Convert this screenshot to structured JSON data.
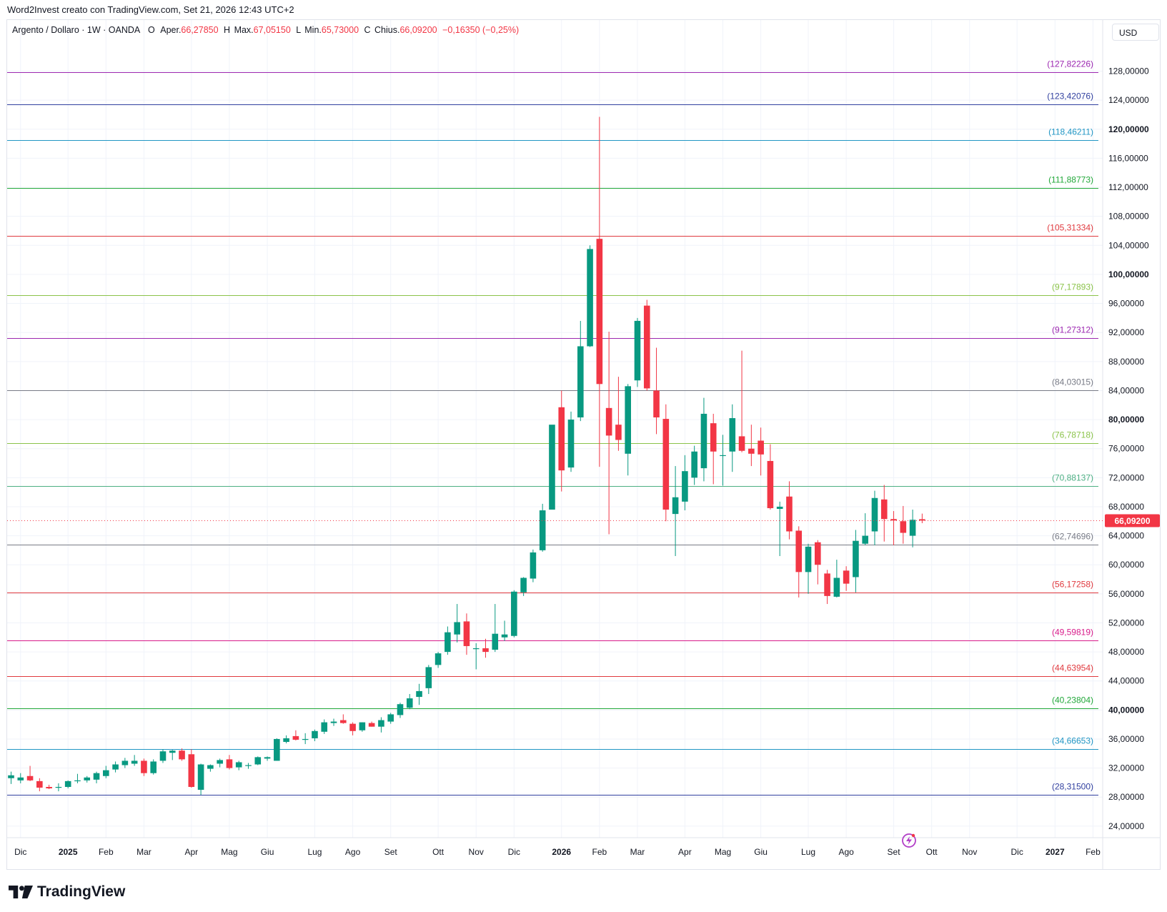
{
  "header": {
    "caption": "Word2Invest creato con TradingView.com, Set 21, 2026 12:43 UTC+2"
  },
  "symbol": {
    "title": "Argento / Dollaro · 1W · OANDA",
    "open_label": "O",
    "open_prefix": "Aper.",
    "open_value": "66,27850",
    "high_label": "H",
    "high_prefix": "Max.",
    "high_value": "67,05150",
    "low_label": "L",
    "low_prefix": "Min.",
    "low_value": "65,73000",
    "close_label": "C",
    "close_prefix": "Chius.",
    "close_value": "66,09200",
    "change": "−0,16350 (−0,25%)"
  },
  "currency_button": "USD",
  "footer": {
    "brand": "TradingView"
  },
  "icons": {
    "logo": "tradingview-logo-icon",
    "alert": "lightning-alert-icon"
  },
  "colors": {
    "up": "#089981",
    "down": "#f23645",
    "grid": "#f0f3fa",
    "axis_text": "#131722",
    "last_price_bg": "#f23645"
  },
  "chart_data": {
    "type": "candlestick",
    "title": "Argento / Dollaro · 1W · OANDA",
    "ylim": [
      23.0,
      131.5
    ],
    "y_ticks": [
      {
        "v": 24,
        "label": "24,00000",
        "bold": false
      },
      {
        "v": 28,
        "label": "28,00000",
        "bold": false
      },
      {
        "v": 32,
        "label": "32,00000",
        "bold": false
      },
      {
        "v": 36,
        "label": "36,00000",
        "bold": false
      },
      {
        "v": 40,
        "label": "40,00000",
        "bold": true
      },
      {
        "v": 44,
        "label": "44,00000",
        "bold": false
      },
      {
        "v": 48,
        "label": "48,00000",
        "bold": false
      },
      {
        "v": 52,
        "label": "52,00000",
        "bold": false
      },
      {
        "v": 56,
        "label": "56,00000",
        "bold": false
      },
      {
        "v": 60,
        "label": "60,00000",
        "bold": false
      },
      {
        "v": 64,
        "label": "64,00000",
        "bold": false
      },
      {
        "v": 68,
        "label": "68,00000",
        "bold": false
      },
      {
        "v": 72,
        "label": "72,00000",
        "bold": false
      },
      {
        "v": 76,
        "label": "76,00000",
        "bold": false
      },
      {
        "v": 80,
        "label": "80,00000",
        "bold": true
      },
      {
        "v": 84,
        "label": "84,00000",
        "bold": false
      },
      {
        "v": 88,
        "label": "88,00000",
        "bold": false
      },
      {
        "v": 92,
        "label": "92,00000",
        "bold": false
      },
      {
        "v": 96,
        "label": "96,00000",
        "bold": false
      },
      {
        "v": 100,
        "label": "100,00000",
        "bold": true
      },
      {
        "v": 104,
        "label": "104,00000",
        "bold": false
      },
      {
        "v": 108,
        "label": "108,00000",
        "bold": false
      },
      {
        "v": 112,
        "label": "112,00000",
        "bold": false
      },
      {
        "v": 116,
        "label": "116,00000",
        "bold": false
      },
      {
        "v": 120,
        "label": "120,00000",
        "bold": true
      },
      {
        "v": 124,
        "label": "124,00000",
        "bold": false
      },
      {
        "v": 128,
        "label": "128,00000",
        "bold": false
      }
    ],
    "x_ticks": [
      {
        "i": 1,
        "label": "Dic",
        "bold": false
      },
      {
        "i": 6,
        "label": "2025",
        "bold": true
      },
      {
        "i": 10,
        "label": "Feb",
        "bold": false
      },
      {
        "i": 14,
        "label": "Mar",
        "bold": false
      },
      {
        "i": 19,
        "label": "Apr",
        "bold": false
      },
      {
        "i": 23,
        "label": "Mag",
        "bold": false
      },
      {
        "i": 27,
        "label": "Giu",
        "bold": false
      },
      {
        "i": 32,
        "label": "Lug",
        "bold": false
      },
      {
        "i": 36,
        "label": "Ago",
        "bold": false
      },
      {
        "i": 40,
        "label": "Set",
        "bold": false
      },
      {
        "i": 45,
        "label": "Ott",
        "bold": false
      },
      {
        "i": 49,
        "label": "Nov",
        "bold": false
      },
      {
        "i": 53,
        "label": "Dic",
        "bold": false
      },
      {
        "i": 58,
        "label": "2026",
        "bold": true
      },
      {
        "i": 62,
        "label": "Feb",
        "bold": false
      },
      {
        "i": 66,
        "label": "Mar",
        "bold": false
      },
      {
        "i": 71,
        "label": "Apr",
        "bold": false
      },
      {
        "i": 75,
        "label": "Mag",
        "bold": false
      },
      {
        "i": 79,
        "label": "Giu",
        "bold": false
      },
      {
        "i": 84,
        "label": "Lug",
        "bold": false
      },
      {
        "i": 88,
        "label": "Ago",
        "bold": false
      },
      {
        "i": 93,
        "label": "Set",
        "bold": false
      },
      {
        "i": 97,
        "label": "Ott",
        "bold": false
      },
      {
        "i": 101,
        "label": "Nov",
        "bold": false
      },
      {
        "i": 106,
        "label": "Dic",
        "bold": false
      },
      {
        "i": 110,
        "label": "2027",
        "bold": true
      },
      {
        "i": 114,
        "label": "Feb",
        "bold": false
      }
    ],
    "levels": [
      {
        "value": 127.82226,
        "label": "(127,82226)",
        "color": "#9c27b0"
      },
      {
        "value": 123.42076,
        "label": "(123,42076)",
        "color": "#303f9f"
      },
      {
        "value": 118.46211,
        "label": "(118,46211)",
        "color": "#2196c4"
      },
      {
        "value": 111.88773,
        "label": "(111,88773)",
        "color": "#22a83a"
      },
      {
        "value": 105.31334,
        "label": "(105,31334)",
        "color": "#e0393e"
      },
      {
        "value": 97.17893,
        "label": "(97,17893)",
        "color": "#8bc34a"
      },
      {
        "value": 91.27312,
        "label": "(91,27312)",
        "color": "#9c27b0"
      },
      {
        "value": 84.03015,
        "label": "(84,03015)",
        "color": "#787b86"
      },
      {
        "value": 76.78718,
        "label": "(76,78718)",
        "color": "#8bc34a"
      },
      {
        "value": 70.88137,
        "label": "(70,88137)",
        "color": "#4caf83"
      },
      {
        "value": 62.74696,
        "label": "(62,74696)",
        "color": "#787b86"
      },
      {
        "value": 56.17258,
        "label": "(56,17258)",
        "color": "#e0393e"
      },
      {
        "value": 49.59819,
        "label": "(49,59819)",
        "color": "#d81b8a"
      },
      {
        "value": 44.63954,
        "label": "(44,63954)",
        "color": "#e0393e"
      },
      {
        "value": 40.23804,
        "label": "(40,23804)",
        "color": "#22a83a"
      },
      {
        "value": 34.66653,
        "label": "(34,66653)",
        "color": "#2196c4"
      },
      {
        "value": 28.315,
        "label": "(28,31500)",
        "color": "#303f9f"
      }
    ],
    "last_price": {
      "value": 66.092,
      "label": "66,09200"
    },
    "candles": [
      {
        "o": 30.6,
        "h": 31.5,
        "l": 29.8,
        "c": 31.0
      },
      {
        "o": 30.3,
        "h": 31.3,
        "l": 29.9,
        "c": 30.7
      },
      {
        "o": 30.9,
        "h": 32.3,
        "l": 30.2,
        "c": 30.3
      },
      {
        "o": 30.2,
        "h": 30.6,
        "l": 28.8,
        "c": 29.3
      },
      {
        "o": 29.4,
        "h": 29.7,
        "l": 29.1,
        "c": 29.2
      },
      {
        "o": 29.3,
        "h": 29.9,
        "l": 28.8,
        "c": 29.4
      },
      {
        "o": 29.4,
        "h": 30.3,
        "l": 29.2,
        "c": 30.2
      },
      {
        "o": 30.2,
        "h": 31.2,
        "l": 29.9,
        "c": 30.3
      },
      {
        "o": 30.3,
        "h": 30.9,
        "l": 30.0,
        "c": 30.7
      },
      {
        "o": 30.4,
        "h": 31.5,
        "l": 29.9,
        "c": 31.3
      },
      {
        "o": 30.9,
        "h": 32.3,
        "l": 30.6,
        "c": 31.7
      },
      {
        "o": 31.8,
        "h": 32.9,
        "l": 31.4,
        "c": 32.5
      },
      {
        "o": 32.4,
        "h": 33.4,
        "l": 32.0,
        "c": 33.0
      },
      {
        "o": 32.6,
        "h": 33.8,
        "l": 32.3,
        "c": 33.0
      },
      {
        "o": 33.0,
        "h": 33.3,
        "l": 30.9,
        "c": 31.3
      },
      {
        "o": 31.3,
        "h": 33.2,
        "l": 31.1,
        "c": 32.9
      },
      {
        "o": 33.0,
        "h": 34.6,
        "l": 32.7,
        "c": 34.3
      },
      {
        "o": 34.1,
        "h": 34.5,
        "l": 33.1,
        "c": 34.4
      },
      {
        "o": 34.4,
        "h": 34.7,
        "l": 33.0,
        "c": 33.2
      },
      {
        "o": 33.9,
        "h": 34.6,
        "l": 29.3,
        "c": 29.4
      },
      {
        "o": 29.0,
        "h": 32.6,
        "l": 28.3,
        "c": 32.5
      },
      {
        "o": 31.9,
        "h": 32.5,
        "l": 31.5,
        "c": 32.4
      },
      {
        "o": 32.6,
        "h": 33.3,
        "l": 32.1,
        "c": 33.1
      },
      {
        "o": 33.2,
        "h": 33.8,
        "l": 31.8,
        "c": 32.0
      },
      {
        "o": 32.1,
        "h": 33.0,
        "l": 31.7,
        "c": 32.8
      },
      {
        "o": 32.3,
        "h": 32.7,
        "l": 31.9,
        "c": 32.4
      },
      {
        "o": 32.5,
        "h": 33.6,
        "l": 32.4,
        "c": 33.5
      },
      {
        "o": 33.3,
        "h": 33.6,
        "l": 33.0,
        "c": 33.5
      },
      {
        "o": 33.0,
        "h": 36.1,
        "l": 33.0,
        "c": 36.0
      },
      {
        "o": 35.6,
        "h": 36.5,
        "l": 35.4,
        "c": 36.1
      },
      {
        "o": 36.4,
        "h": 37.2,
        "l": 35.8,
        "c": 35.9
      },
      {
        "o": 35.9,
        "h": 36.8,
        "l": 35.3,
        "c": 36.0
      },
      {
        "o": 36.1,
        "h": 37.3,
        "l": 35.7,
        "c": 37.1
      },
      {
        "o": 37.0,
        "h": 38.7,
        "l": 36.7,
        "c": 38.3
      },
      {
        "o": 38.2,
        "h": 38.8,
        "l": 37.8,
        "c": 38.4
      },
      {
        "o": 38.6,
        "h": 39.4,
        "l": 38.1,
        "c": 38.2
      },
      {
        "o": 38.1,
        "h": 38.3,
        "l": 36.5,
        "c": 37.1
      },
      {
        "o": 37.2,
        "h": 38.3,
        "l": 37.0,
        "c": 38.3
      },
      {
        "o": 38.2,
        "h": 38.4,
        "l": 37.7,
        "c": 37.7
      },
      {
        "o": 37.7,
        "h": 39.0,
        "l": 36.9,
        "c": 38.6
      },
      {
        "o": 38.4,
        "h": 39.6,
        "l": 38.1,
        "c": 39.4
      },
      {
        "o": 39.3,
        "h": 41.0,
        "l": 38.9,
        "c": 40.8
      },
      {
        "o": 40.3,
        "h": 42.2,
        "l": 40.1,
        "c": 41.6
      },
      {
        "o": 41.8,
        "h": 43.6,
        "l": 40.7,
        "c": 42.6
      },
      {
        "o": 43.0,
        "h": 46.2,
        "l": 42.2,
        "c": 45.9
      },
      {
        "o": 46.2,
        "h": 48.0,
        "l": 45.8,
        "c": 47.8
      },
      {
        "o": 48.0,
        "h": 51.5,
        "l": 47.6,
        "c": 50.7
      },
      {
        "o": 50.4,
        "h": 54.6,
        "l": 49.3,
        "c": 52.1
      },
      {
        "o": 52.2,
        "h": 53.3,
        "l": 47.6,
        "c": 48.8
      },
      {
        "o": 48.4,
        "h": 49.2,
        "l": 45.6,
        "c": 48.5
      },
      {
        "o": 48.5,
        "h": 49.8,
        "l": 47.2,
        "c": 48.0
      },
      {
        "o": 48.3,
        "h": 54.6,
        "l": 48.0,
        "c": 50.5
      },
      {
        "o": 50.0,
        "h": 52.3,
        "l": 49.5,
        "c": 50.4
      },
      {
        "o": 50.2,
        "h": 56.5,
        "l": 50.0,
        "c": 56.3
      },
      {
        "o": 56.2,
        "h": 58.3,
        "l": 55.7,
        "c": 58.2
      },
      {
        "o": 58.1,
        "h": 62.1,
        "l": 57.6,
        "c": 61.7
      },
      {
        "o": 62.0,
        "h": 68.4,
        "l": 61.8,
        "c": 67.5
      },
      {
        "o": 67.6,
        "h": 79.2,
        "l": 67.6,
        "c": 79.3
      },
      {
        "o": 81.7,
        "h": 84.0,
        "l": 70.1,
        "c": 73.0
      },
      {
        "o": 73.4,
        "h": 81.1,
        "l": 72.8,
        "c": 80.0
      },
      {
        "o": 80.3,
        "h": 93.6,
        "l": 79.8,
        "c": 90.1
      },
      {
        "o": 90.1,
        "h": 104.0,
        "l": 90.0,
        "c": 103.5
      },
      {
        "o": 104.9,
        "h": 121.7,
        "l": 73.5,
        "c": 84.9
      },
      {
        "o": 81.6,
        "h": 92.1,
        "l": 64.2,
        "c": 77.8
      },
      {
        "o": 79.3,
        "h": 85.9,
        "l": 75.7,
        "c": 77.2
      },
      {
        "o": 75.3,
        "h": 84.9,
        "l": 72.3,
        "c": 84.6
      },
      {
        "o": 85.4,
        "h": 94.0,
        "l": 84.5,
        "c": 93.6
      },
      {
        "o": 95.7,
        "h": 96.5,
        "l": 84.0,
        "c": 84.3
      },
      {
        "o": 84.0,
        "h": 89.9,
        "l": 78.0,
        "c": 80.3
      },
      {
        "o": 80.1,
        "h": 82.1,
        "l": 66.0,
        "c": 67.6
      },
      {
        "o": 67.0,
        "h": 73.6,
        "l": 61.2,
        "c": 69.3
      },
      {
        "o": 68.7,
        "h": 75.1,
        "l": 67.5,
        "c": 72.9
      },
      {
        "o": 72.0,
        "h": 76.4,
        "l": 71.0,
        "c": 75.6
      },
      {
        "o": 73.3,
        "h": 83.0,
        "l": 71.5,
        "c": 80.8
      },
      {
        "o": 79.5,
        "h": 80.8,
        "l": 71.1,
        "c": 75.6
      },
      {
        "o": 75.1,
        "h": 77.9,
        "l": 70.9,
        "c": 75.1
      },
      {
        "o": 75.6,
        "h": 82.1,
        "l": 72.8,
        "c": 80.2
      },
      {
        "o": 77.7,
        "h": 89.5,
        "l": 75.5,
        "c": 75.7
      },
      {
        "o": 76.0,
        "h": 79.3,
        "l": 73.6,
        "c": 75.3
      },
      {
        "o": 77.1,
        "h": 78.9,
        "l": 72.3,
        "c": 75.2
      },
      {
        "o": 74.3,
        "h": 76.6,
        "l": 67.6,
        "c": 67.8
      },
      {
        "o": 67.7,
        "h": 68.7,
        "l": 61.2,
        "c": 68.0
      },
      {
        "o": 69.4,
        "h": 71.5,
        "l": 63.5,
        "c": 64.6
      },
      {
        "o": 64.7,
        "h": 65.3,
        "l": 55.5,
        "c": 59.0
      },
      {
        "o": 59.0,
        "h": 62.9,
        "l": 56.0,
        "c": 62.5
      },
      {
        "o": 63.1,
        "h": 63.4,
        "l": 57.3,
        "c": 60.0
      },
      {
        "o": 58.8,
        "h": 59.3,
        "l": 54.6,
        "c": 55.7
      },
      {
        "o": 55.6,
        "h": 60.7,
        "l": 55.5,
        "c": 58.2
      },
      {
        "o": 59.2,
        "h": 59.8,
        "l": 56.4,
        "c": 57.4
      },
      {
        "o": 58.3,
        "h": 64.8,
        "l": 56.2,
        "c": 63.3
      },
      {
        "o": 62.9,
        "h": 67.1,
        "l": 62.7,
        "c": 64.0
      },
      {
        "o": 64.6,
        "h": 70.2,
        "l": 62.7,
        "c": 69.2
      },
      {
        "o": 69.0,
        "h": 71.0,
        "l": 63.2,
        "c": 66.3
      },
      {
        "o": 66.3,
        "h": 67.4,
        "l": 62.7,
        "c": 66.1
      },
      {
        "o": 66.0,
        "h": 68.1,
        "l": 62.9,
        "c": 64.4
      },
      {
        "o": 64.0,
        "h": 67.6,
        "l": 62.4,
        "c": 66.2
      },
      {
        "o": 66.28,
        "h": 67.05,
        "l": 65.73,
        "c": 66.09
      }
    ]
  }
}
